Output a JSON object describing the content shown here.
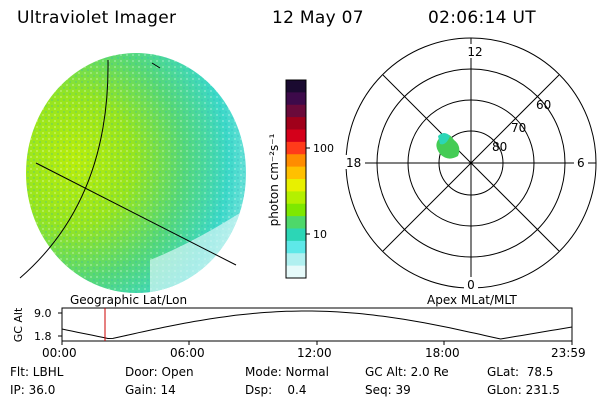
{
  "header": {
    "title": "Ultraviolet Imager",
    "date": "12 May 07",
    "time": "02:06:14 UT"
  },
  "colorbar": {
    "unit_label": "photon cm⁻²s⁻¹",
    "tick_labels": [
      "100",
      "10"
    ],
    "colors": [
      "#1a0a30",
      "#3d0a4a",
      "#6a0a3a",
      "#a0001a",
      "#d4001a",
      "#ff3b1a",
      "#ff8c00",
      "#ffc000",
      "#e8f000",
      "#b4f000",
      "#7ee800",
      "#4ed86a",
      "#2cd6b6",
      "#5ee8e8",
      "#b0f0f0",
      "#e6fafa"
    ]
  },
  "polar_plot": {
    "mlt_labels": [
      "12",
      "18",
      "6",
      "0"
    ],
    "lat_labels": [
      "60",
      "70",
      "80"
    ]
  },
  "altitude_plot": {
    "ylabel": "GC Alt",
    "ytick_labels": [
      "9.0",
      "1.8"
    ],
    "xtick_labels": [
      "00:00",
      "06:00",
      "12:00",
      "18:00",
      "23:59"
    ],
    "left_caption": "Geographic Lat/Lon",
    "right_caption": "Apex MLat/MLT",
    "curve_color": "#000000",
    "marker_color": "#cc0000"
  },
  "info": {
    "flt": "Flt: LBHL",
    "ip": "IP: 36.0",
    "door": "Door: Open",
    "gain": "Gain: 14",
    "mode": "Mode: Normal",
    "dsp": "Dsp:    0.4",
    "gc_alt": "GC Alt: 2.0 Re",
    "seq": "Seq: 39",
    "glat": "GLat:  78.5",
    "glon": "GLon: 231.5"
  }
}
